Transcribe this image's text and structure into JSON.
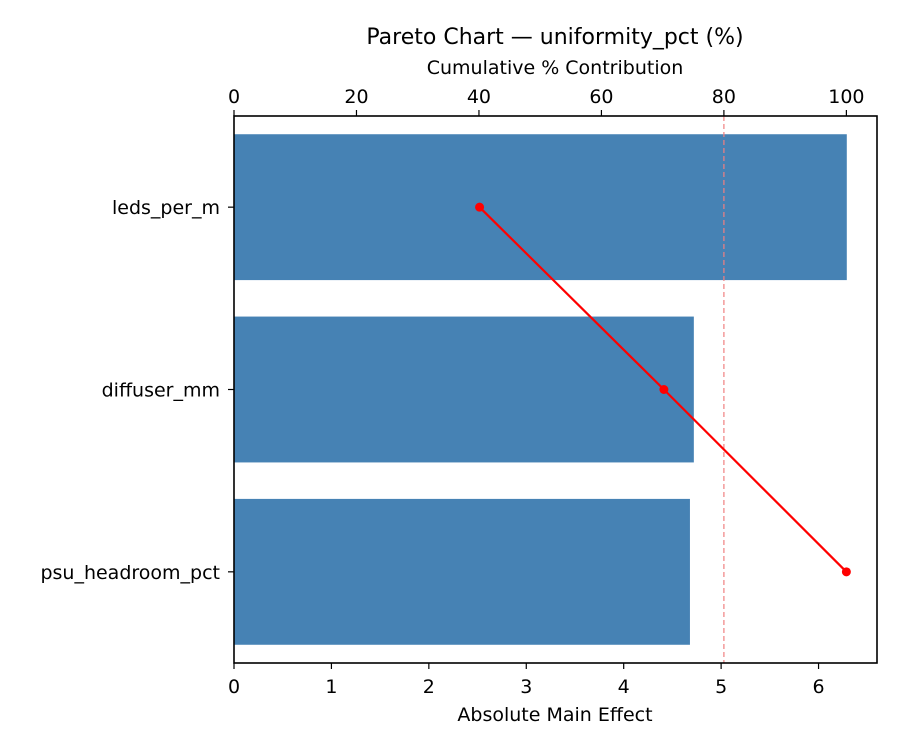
{
  "chart_data": {
    "type": "bar",
    "orientation": "horizontal",
    "title": "Pareto Chart — uniformity_pct (%)",
    "xlabel": "Absolute Main Effect",
    "x2label": "Cumulative % Contribution",
    "ylabel": "",
    "categories": [
      "leds_per_m",
      "diffuser_mm",
      "psu_headroom_pct"
    ],
    "series": [
      {
        "name": "Absolute Main Effect",
        "type": "bar",
        "axis": "bottom",
        "color": "#4682b4",
        "values": [
          6.29,
          4.72,
          4.68
        ]
      },
      {
        "name": "Cumulative % Contribution",
        "type": "line",
        "axis": "top",
        "color": "#ff0000",
        "values": [
          40.1,
          70.2,
          100.0
        ]
      }
    ],
    "xlim": [
      0,
      6.6
    ],
    "x2lim": [
      0,
      105
    ],
    "xticks": [
      0,
      1,
      2,
      3,
      4,
      5,
      6
    ],
    "x2ticks": [
      0,
      20,
      40,
      60,
      80,
      100
    ],
    "reference_line": {
      "axis": "top",
      "value": 80,
      "style": "dashed",
      "color": "#f08080"
    },
    "grid": false,
    "legend": null
  }
}
